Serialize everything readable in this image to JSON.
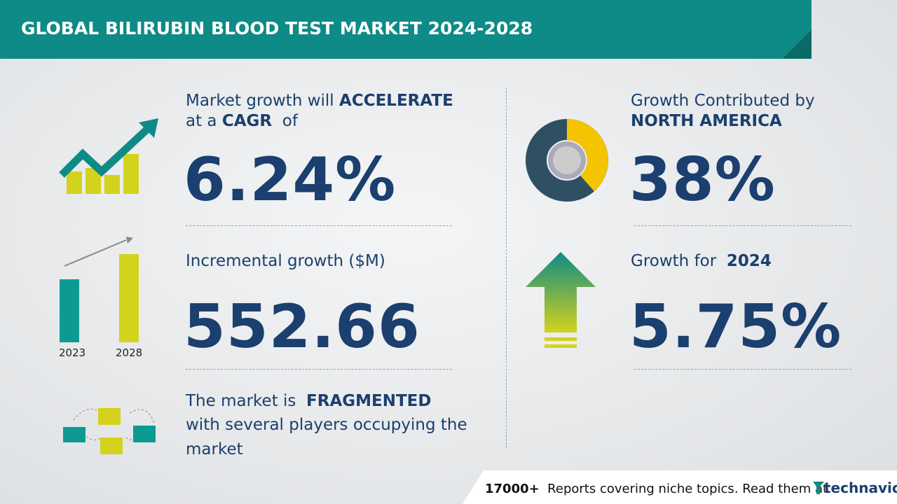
{
  "header": {
    "title": "GLOBAL BILIRUBIN BLOOD TEST MARKET 2024-2028"
  },
  "cagr": {
    "line1": "Market growth will",
    "line1_bold": "ACCELERATE",
    "line2": "at a",
    "line2_bold": "CAGR",
    "line2_end": "of",
    "value": "6.24%"
  },
  "incremental": {
    "label": "Incremental growth ($M)",
    "value": "552.66",
    "years": [
      "2023",
      "2028"
    ]
  },
  "market": {
    "line1": "The market is",
    "line1_bold": "FRAGMENTED",
    "line2": "with several players occupying the",
    "line3": "market"
  },
  "region": {
    "line1": "Growth Contributed by",
    "line2": "NORTH AMERICA",
    "value": "38%"
  },
  "year_growth": {
    "label": "Growth for",
    "year": "2024",
    "value": "5.75%"
  },
  "footer": {
    "count": "17000+",
    "text": "Reports covering niche topics. Read them at",
    "brand": "technavio"
  }
}
